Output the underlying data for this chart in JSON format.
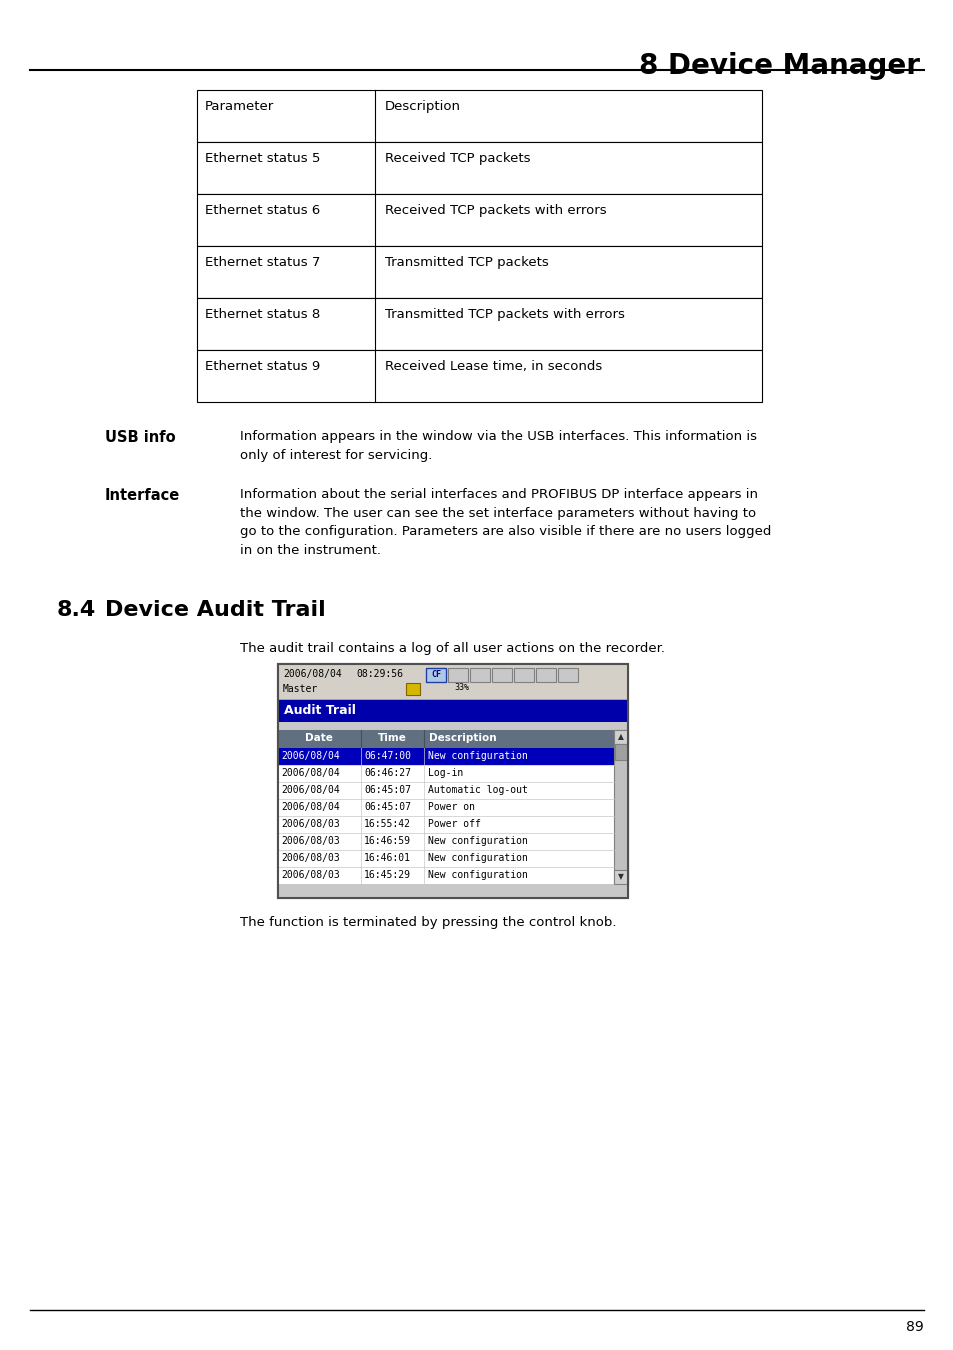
{
  "title": "8 Device Manager",
  "page_num": "89",
  "bg_color": "#ffffff",
  "table": {
    "col1_header": "Parameter",
    "col2_header": "Description",
    "rows": [
      [
        "Ethernet status 5",
        "Received TCP packets"
      ],
      [
        "Ethernet status 6",
        "Received TCP packets with errors"
      ],
      [
        "Ethernet status 7",
        "Transmitted TCP packets"
      ],
      [
        "Ethernet status 8",
        "Transmitted TCP packets with errors"
      ],
      [
        "Ethernet status 9",
        "Received Lease time, in seconds"
      ]
    ]
  },
  "usb_info_label": "USB info",
  "usb_info_text": "Information appears in the window via the USB interfaces. This information is\nonly of interest for servicing.",
  "interface_label": "Interface",
  "interface_text": "Information about the serial interfaces and PROFIBUS DP interface appears in\nthe window. The user can see the set interface parameters without having to\ngo to the configuration. Parameters are also visible if there are no users logged\nin on the instrument.",
  "section_num": "8.4",
  "section_title": "Device Audit Trail",
  "intro_text": "The audit trail contains a log of all user actions on the recorder.",
  "screenshot": {
    "header_date": "2006/08/04",
    "header_time": "08:29:56",
    "header_user": "Master",
    "cf_text": "CF",
    "pct_text": "33%",
    "audit_trail_label": "Audit Trail",
    "col_headers": [
      "Date",
      "Time",
      "Description"
    ],
    "rows": [
      {
        "date": "2006/08/04",
        "time": "06:47:00",
        "desc": "New configuration",
        "highlight": true
      },
      {
        "date": "2006/08/04",
        "time": "06:46:27",
        "desc": "Log-in",
        "highlight": false
      },
      {
        "date": "2006/08/04",
        "time": "06:45:07",
        "desc": "Automatic log-out",
        "highlight": false
      },
      {
        "date": "2006/08/04",
        "time": "06:45:07",
        "desc": "Power on",
        "highlight": false
      },
      {
        "date": "2006/08/03",
        "time": "16:55:42",
        "desc": "Power off",
        "highlight": false
      },
      {
        "date": "2006/08/03",
        "time": "16:46:59",
        "desc": "New configuration",
        "highlight": false
      },
      {
        "date": "2006/08/03",
        "time": "16:46:01",
        "desc": "New configuration",
        "highlight": false
      },
      {
        "date": "2006/08/03",
        "time": "16:45:29",
        "desc": "New configuration",
        "highlight": false
      }
    ]
  },
  "footer_text": "The function is terminated by pressing the control knob.",
  "highlight_color": "#0000bb",
  "highlight_text_color": "#ffffff",
  "audit_trail_header_color": "#0000aa",
  "col_header_color": "#607080",
  "table_border_color": "#000000",
  "text_color": "#000000"
}
